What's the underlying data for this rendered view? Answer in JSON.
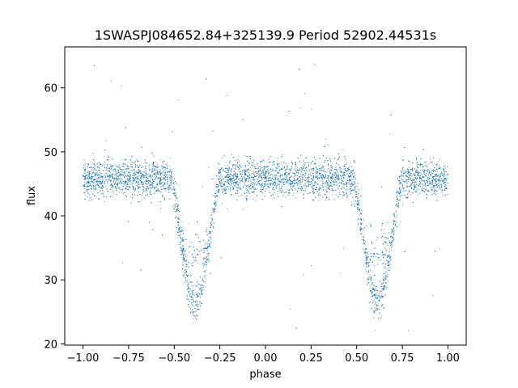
{
  "chart_data": {
    "type": "scatter",
    "title": "1SWASPJ084652.84+325139.9 Period 52902.44531s",
    "xlabel": "phase",
    "ylabel": "flux",
    "xlim": [
      -1.1,
      1.1
    ],
    "ylim": [
      19.8,
      66.4
    ],
    "xticks": [
      -1.0,
      -0.75,
      -0.5,
      -0.25,
      0.0,
      0.25,
      0.5,
      0.75,
      1.0
    ],
    "xtick_labels": [
      "−1.00",
      "−0.75",
      "−0.50",
      "−0.25",
      "0.00",
      "0.25",
      "0.50",
      "0.75",
      "1.00"
    ],
    "yticks": [
      20,
      30,
      40,
      50,
      60
    ],
    "ytick_labels": [
      "20",
      "30",
      "40",
      "50",
      "60"
    ],
    "grid": false,
    "series": [
      {
        "color": "#1f77b4",
        "marker_size": 1,
        "description_points": "phase-folded light curve, x from -1.0 to 1.0",
        "baseline_flux": 45.8,
        "baseline_scatter": 1.4,
        "eclipses": [
          {
            "phase": -0.385,
            "depth_flux": 26.5,
            "half_width": 0.14
          },
          {
            "phase": 0.615,
            "depth_flux": 26.5,
            "half_width": 0.14
          }
        ],
        "secondary_dip_flux": 34.5,
        "x_range": [
          -1.0,
          1.0
        ],
        "outlier_range": [
          22,
          64
        ],
        "n_points": 9000
      }
    ]
  }
}
